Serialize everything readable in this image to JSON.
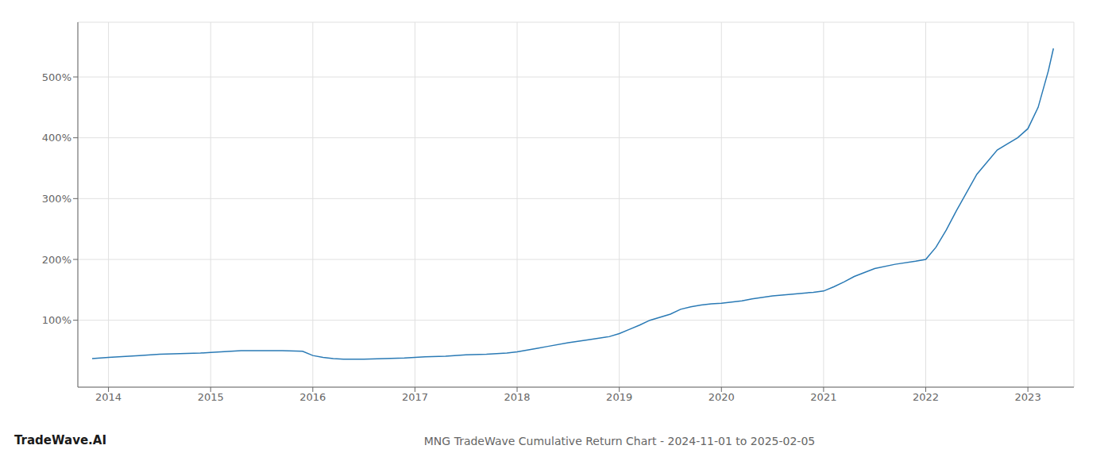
{
  "chart_data": {
    "type": "line",
    "title": "MNG TradeWave Cumulative Return Chart - 2024-11-01 to 2025-02-05",
    "annotations": [
      "TradeWave.AI"
    ],
    "x": [
      2013.84,
      2014.0,
      2014.1,
      2014.2,
      2014.3,
      2014.5,
      2014.7,
      2014.9,
      2015.0,
      2015.1,
      2015.2,
      2015.3,
      2015.5,
      2015.7,
      2015.9,
      2016.0,
      2016.1,
      2016.2,
      2016.3,
      2016.5,
      2016.7,
      2016.9,
      2017.0,
      2017.1,
      2017.3,
      2017.5,
      2017.7,
      2017.9,
      2018.0,
      2018.1,
      2018.2,
      2018.3,
      2018.5,
      2018.7,
      2018.9,
      2019.0,
      2019.1,
      2019.2,
      2019.3,
      2019.5,
      2019.6,
      2019.7,
      2019.8,
      2019.9,
      2020.0,
      2020.1,
      2020.2,
      2020.3,
      2020.5,
      2020.7,
      2020.9,
      2021.0,
      2021.1,
      2021.2,
      2021.3,
      2021.5,
      2021.7,
      2021.9,
      2022.0,
      2022.1,
      2022.2,
      2022.3,
      2022.5,
      2022.7,
      2022.9,
      2023.0,
      2023.1,
      2023.2,
      2023.25
    ],
    "values": [
      37,
      39,
      40,
      41,
      42,
      44,
      45,
      46,
      47,
      48,
      49,
      50,
      50,
      50,
      49,
      42,
      39,
      37,
      36,
      36,
      37,
      38,
      39,
      40,
      41,
      43,
      44,
      46,
      48,
      51,
      54,
      57,
      63,
      68,
      73,
      78,
      85,
      92,
      100,
      110,
      118,
      122,
      125,
      127,
      128,
      130,
      132,
      135,
      140,
      143,
      146,
      148,
      155,
      163,
      172,
      185,
      192,
      197,
      200,
      220,
      248,
      280,
      340,
      380,
      400,
      415,
      450,
      510,
      547
    ],
    "color": "#2a7ab5",
    "xlim": [
      2013.7,
      2023.45
    ],
    "xticks": [
      2014,
      2015,
      2016,
      2017,
      2018,
      2019,
      2020,
      2021,
      2022,
      2023
    ],
    "ylim": [
      -10,
      590
    ],
    "yticks": [
      {
        "value": 100,
        "label": "100%"
      },
      {
        "value": 200,
        "label": "200%"
      },
      {
        "value": 300,
        "label": "300%"
      },
      {
        "value": 400,
        "label": "400%"
      },
      {
        "value": 500,
        "label": "500%"
      }
    ],
    "grid": true
  }
}
